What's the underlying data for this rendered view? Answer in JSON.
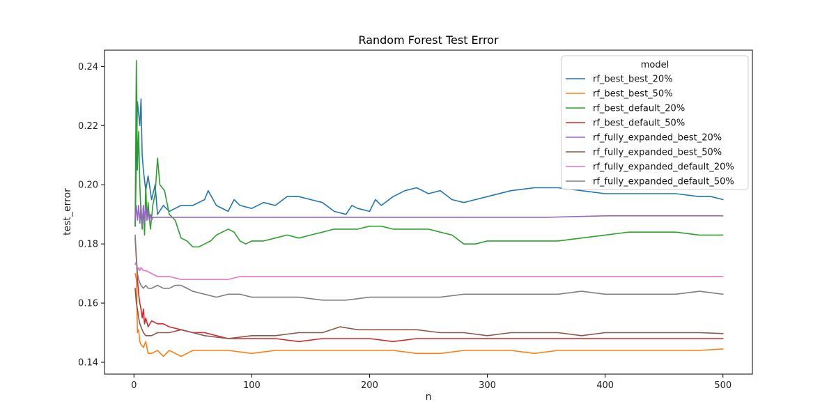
{
  "chart_data": {
    "type": "line",
    "title": "Random Forest Test Error",
    "xlabel": "n",
    "ylabel": "test_error",
    "xlim": [
      -25,
      525
    ],
    "ylim": [
      0.136,
      0.2455
    ],
    "xticks": [
      0,
      100,
      200,
      300,
      400,
      500
    ],
    "yticks": [
      0.14,
      0.16,
      0.18,
      0.2,
      0.22,
      0.24
    ],
    "ytick_labels": [
      "0.14",
      "0.16",
      "0.18",
      "0.20",
      "0.22",
      "0.24"
    ],
    "grid": false,
    "legend": {
      "title": "model",
      "placement": "top-right"
    },
    "series": [
      {
        "name": "rf_best_best_20%",
        "color": "#1f77b4",
        "x": [
          1,
          3,
          5,
          6,
          7,
          8,
          10,
          12,
          15,
          18,
          20,
          25,
          30,
          40,
          50,
          60,
          63,
          70,
          80,
          85,
          90,
          100,
          110,
          120,
          130,
          140,
          150,
          160,
          170,
          180,
          185,
          190,
          200,
          205,
          210,
          220,
          230,
          240,
          250,
          260,
          270,
          280,
          290,
          300,
          320,
          340,
          360,
          380,
          400,
          420,
          440,
          460,
          480,
          490,
          500
        ],
        "y": [
          0.186,
          0.228,
          0.22,
          0.229,
          0.21,
          0.205,
          0.198,
          0.203,
          0.195,
          0.2,
          0.19,
          0.193,
          0.191,
          0.193,
          0.193,
          0.195,
          0.198,
          0.193,
          0.191,
          0.195,
          0.193,
          0.192,
          0.194,
          0.193,
          0.196,
          0.196,
          0.195,
          0.194,
          0.191,
          0.19,
          0.193,
          0.192,
          0.191,
          0.195,
          0.193,
          0.196,
          0.198,
          0.199,
          0.197,
          0.198,
          0.195,
          0.194,
          0.195,
          0.196,
          0.198,
          0.199,
          0.199,
          0.198,
          0.197,
          0.197,
          0.197,
          0.197,
          0.196,
          0.196,
          0.195
        ]
      },
      {
        "name": "rf_best_best_50%",
        "color": "#ff7f0e",
        "x": [
          1,
          2,
          3,
          4,
          5,
          6,
          8,
          10,
          12,
          15,
          20,
          25,
          30,
          35,
          40,
          50,
          60,
          80,
          100,
          120,
          140,
          160,
          180,
          200,
          220,
          240,
          260,
          280,
          300,
          320,
          340,
          360,
          380,
          400,
          420,
          440,
          460,
          480,
          500
        ],
        "y": [
          0.17,
          0.168,
          0.15,
          0.151,
          0.147,
          0.146,
          0.145,
          0.147,
          0.143,
          0.143,
          0.144,
          0.142,
          0.144,
          0.143,
          0.142,
          0.144,
          0.144,
          0.144,
          0.143,
          0.144,
          0.144,
          0.144,
          0.144,
          0.144,
          0.144,
          0.143,
          0.143,
          0.144,
          0.144,
          0.144,
          0.143,
          0.144,
          0.144,
          0.144,
          0.144,
          0.144,
          0.144,
          0.144,
          0.1445
        ]
      },
      {
        "name": "rf_best_default_20%",
        "color": "#2ca02c",
        "x": [
          1,
          2,
          3,
          4,
          5,
          6,
          7,
          8,
          9,
          10,
          11,
          12,
          14,
          16,
          18,
          20,
          22,
          24,
          26,
          30,
          35,
          40,
          45,
          50,
          55,
          60,
          65,
          70,
          75,
          80,
          85,
          90,
          95,
          100,
          110,
          120,
          130,
          140,
          150,
          160,
          170,
          180,
          190,
          200,
          210,
          220,
          230,
          240,
          250,
          260,
          270,
          280,
          290,
          300,
          320,
          340,
          360,
          380,
          400,
          420,
          440,
          460,
          480,
          500
        ],
        "y": [
          0.186,
          0.242,
          0.205,
          0.218,
          0.2,
          0.19,
          0.185,
          0.193,
          0.183,
          0.2,
          0.188,
          0.194,
          0.185,
          0.193,
          0.197,
          0.209,
          0.2,
          0.199,
          0.198,
          0.19,
          0.188,
          0.182,
          0.181,
          0.179,
          0.179,
          0.18,
          0.181,
          0.183,
          0.184,
          0.185,
          0.184,
          0.181,
          0.18,
          0.181,
          0.181,
          0.182,
          0.183,
          0.182,
          0.183,
          0.184,
          0.185,
          0.185,
          0.185,
          0.186,
          0.186,
          0.185,
          0.185,
          0.185,
          0.185,
          0.184,
          0.183,
          0.18,
          0.18,
          0.181,
          0.181,
          0.181,
          0.181,
          0.182,
          0.183,
          0.184,
          0.184,
          0.184,
          0.183,
          0.183
        ]
      },
      {
        "name": "rf_best_default_50%",
        "color": "#d62728",
        "x": [
          1,
          2,
          3,
          4,
          5,
          6,
          7,
          8,
          9,
          10,
          12,
          15,
          20,
          25,
          30,
          40,
          50,
          60,
          80,
          100,
          120,
          140,
          160,
          180,
          200,
          220,
          240,
          260,
          280,
          300,
          320,
          340,
          360,
          380,
          400,
          420,
          440,
          460,
          480,
          500
        ],
        "y": [
          0.182,
          0.175,
          0.168,
          0.163,
          0.16,
          0.158,
          0.155,
          0.158,
          0.153,
          0.155,
          0.152,
          0.154,
          0.153,
          0.153,
          0.152,
          0.151,
          0.15,
          0.15,
          0.148,
          0.148,
          0.148,
          0.147,
          0.148,
          0.148,
          0.148,
          0.147,
          0.148,
          0.148,
          0.148,
          0.148,
          0.148,
          0.148,
          0.148,
          0.148,
          0.148,
          0.148,
          0.148,
          0.148,
          0.148,
          0.148
        ]
      },
      {
        "name": "rf_fully_expanded_best_20%",
        "color": "#9467bd",
        "x": [
          1,
          2,
          3,
          4,
          5,
          6,
          7,
          8,
          9,
          10,
          11,
          12,
          13,
          14,
          15,
          16,
          20,
          30,
          40,
          60,
          100,
          150,
          200,
          250,
          300,
          350,
          400,
          450,
          500
        ],
        "y": [
          0.188,
          0.193,
          0.188,
          0.193,
          0.187,
          0.193,
          0.186,
          0.193,
          0.187,
          0.193,
          0.188,
          0.191,
          0.188,
          0.19,
          0.188,
          0.189,
          0.189,
          0.189,
          0.189,
          0.189,
          0.189,
          0.189,
          0.189,
          0.189,
          0.189,
          0.189,
          0.1895,
          0.1895,
          0.1895
        ]
      },
      {
        "name": "rf_fully_expanded_best_50%",
        "color": "#8c564b",
        "x": [
          1,
          2,
          3,
          4,
          5,
          6,
          8,
          10,
          15,
          20,
          30,
          40,
          50,
          60,
          80,
          100,
          120,
          140,
          160,
          175,
          190,
          200,
          220,
          240,
          260,
          280,
          300,
          320,
          340,
          360,
          380,
          400,
          420,
          440,
          460,
          480,
          500
        ],
        "y": [
          0.165,
          0.16,
          0.158,
          0.155,
          0.153,
          0.152,
          0.15,
          0.149,
          0.149,
          0.15,
          0.15,
          0.151,
          0.15,
          0.149,
          0.148,
          0.149,
          0.149,
          0.15,
          0.15,
          0.152,
          0.151,
          0.151,
          0.151,
          0.151,
          0.15,
          0.15,
          0.149,
          0.15,
          0.15,
          0.15,
          0.149,
          0.15,
          0.15,
          0.15,
          0.15,
          0.15,
          0.1497
        ]
      },
      {
        "name": "rf_fully_expanded_default_20%",
        "color": "#e377c2",
        "x": [
          1,
          2,
          3,
          4,
          5,
          6,
          8,
          10,
          15,
          20,
          30,
          40,
          50,
          60,
          80,
          90,
          100,
          150,
          200,
          250,
          300,
          350,
          400,
          450,
          500
        ],
        "y": [
          0.173,
          0.174,
          0.171,
          0.172,
          0.171,
          0.172,
          0.171,
          0.171,
          0.17,
          0.169,
          0.169,
          0.168,
          0.168,
          0.168,
          0.168,
          0.169,
          0.169,
          0.169,
          0.169,
          0.169,
          0.169,
          0.169,
          0.169,
          0.169,
          0.169
        ]
      },
      {
        "name": "rf_fully_expanded_default_50%",
        "color": "#7f7f7f",
        "x": [
          1,
          2,
          3,
          4,
          5,
          6,
          8,
          10,
          12,
          15,
          20,
          25,
          30,
          35,
          40,
          50,
          60,
          70,
          80,
          90,
          100,
          120,
          140,
          160,
          180,
          200,
          220,
          240,
          260,
          280,
          300,
          320,
          340,
          360,
          380,
          400,
          420,
          440,
          460,
          480,
          500
        ],
        "y": [
          0.183,
          0.176,
          0.17,
          0.168,
          0.167,
          0.166,
          0.165,
          0.166,
          0.165,
          0.165,
          0.166,
          0.165,
          0.165,
          0.166,
          0.166,
          0.164,
          0.163,
          0.162,
          0.163,
          0.163,
          0.162,
          0.162,
          0.162,
          0.161,
          0.161,
          0.162,
          0.162,
          0.162,
          0.162,
          0.163,
          0.163,
          0.163,
          0.163,
          0.163,
          0.164,
          0.163,
          0.163,
          0.163,
          0.163,
          0.164,
          0.163
        ]
      }
    ]
  }
}
